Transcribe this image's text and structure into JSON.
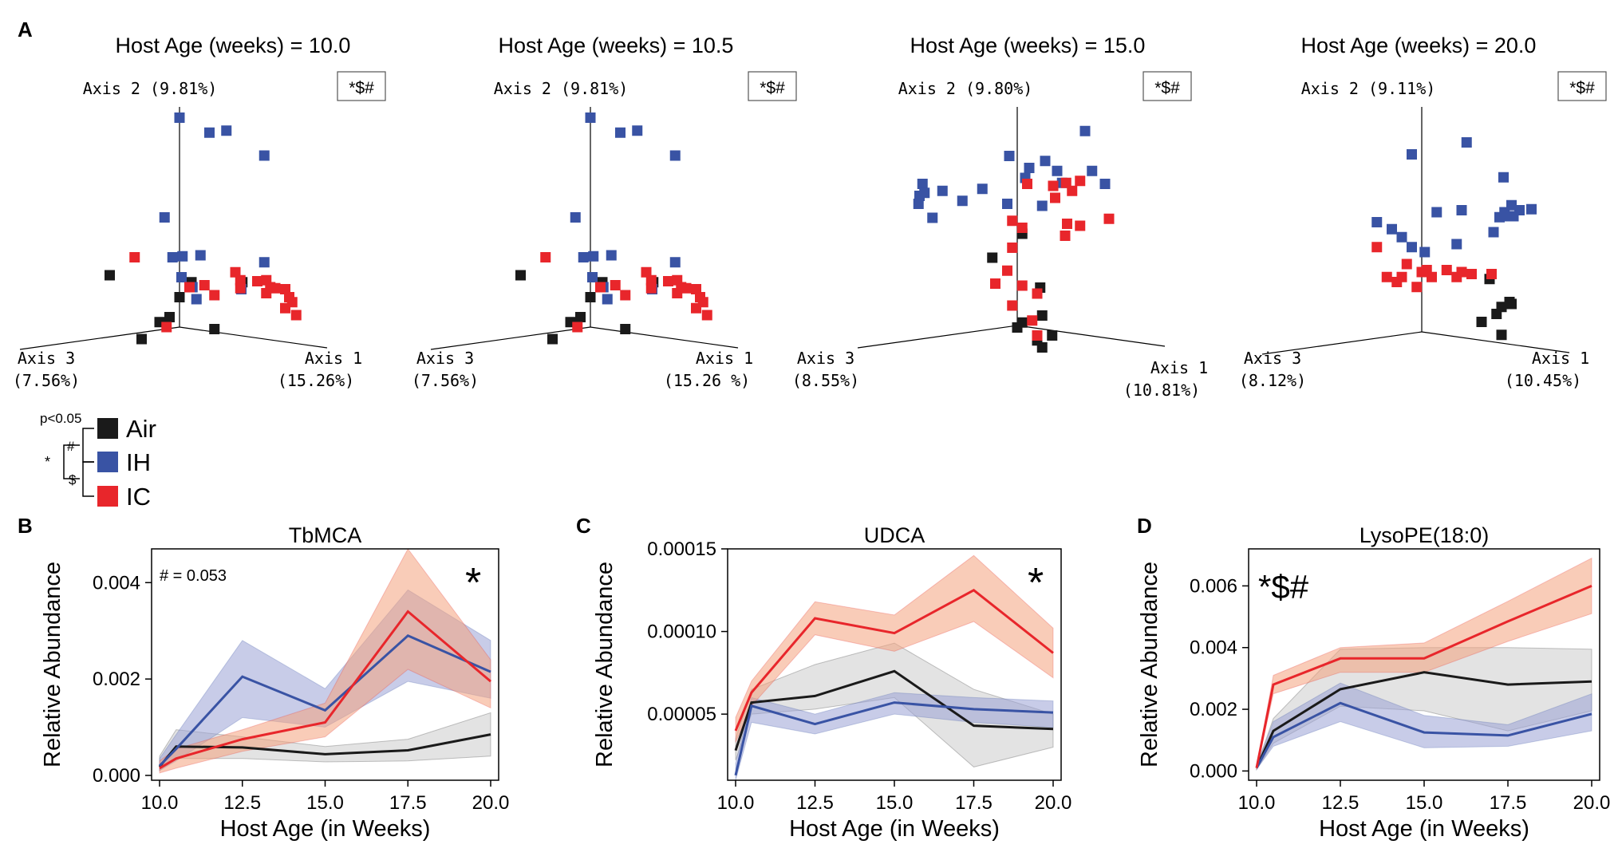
{
  "colors": {
    "air": "#1a1a1a",
    "ih": "#3953a4",
    "ic": "#e8262b",
    "air_band": "#cccccc",
    "ih_band": "#9aa3d6",
    "ic_band": "#f4a27e"
  },
  "legend": {
    "pvalue_label": "p<0.05",
    "items": [
      {
        "key": "air",
        "label": "Air"
      },
      {
        "key": "ih",
        "label": "IH"
      },
      {
        "key": "ic",
        "label": "IC"
      }
    ],
    "bracket_hash": "#",
    "bracket_dollar": "$",
    "bracket_star": "*"
  },
  "chart_data": [
    {
      "panel": "A",
      "type": "scatter",
      "title": "Host Age (weeks) = 10.0",
      "significance": "*$#",
      "axis1_label": "Axis 1",
      "axis1_pct": "(15.26%)",
      "axis2_label": "Axis 2 (9.81%)",
      "axis3_label": "Axis 3",
      "axis3_pct": "(7.56%)",
      "points": {
        "ih": [
          [
            0,
            2.1
          ],
          [
            0.3,
            1.95
          ],
          [
            0.47,
            1.97
          ],
          [
            0.85,
            1.72
          ],
          [
            -0.15,
            1.1
          ],
          [
            -0.07,
            0.7
          ],
          [
            0.03,
            0.71
          ],
          [
            0.21,
            0.72
          ],
          [
            0.02,
            0.5
          ],
          [
            0.13,
            0.4
          ],
          [
            0.85,
            0.65
          ],
          [
            0.62,
            0.38
          ],
          [
            0.17,
            0.28
          ]
        ],
        "ic": [
          [
            -0.45,
            0.7
          ],
          [
            0.56,
            0.55
          ],
          [
            0.61,
            0.47
          ],
          [
            0.78,
            0.46
          ],
          [
            0.87,
            0.47
          ],
          [
            0.91,
            0.4
          ],
          [
            0.1,
            0.4
          ],
          [
            0.25,
            0.42
          ],
          [
            0.35,
            0.32
          ],
          [
            0.61,
            0.39
          ],
          [
            0.87,
            0.34
          ],
          [
            0.96,
            0.39
          ],
          [
            1.06,
            0.38
          ],
          [
            1.1,
            0.3
          ],
          [
            1.13,
            0.25
          ],
          [
            1.06,
            0.19
          ],
          [
            1.17,
            0.12
          ],
          [
            -0.13,
            0.0
          ]
        ],
        "air": [
          [
            -0.7,
            0.52
          ],
          [
            0.12,
            0.45
          ],
          [
            0.63,
            0.45
          ],
          [
            0.0,
            0.3
          ],
          [
            -0.1,
            0.1
          ],
          [
            -0.2,
            0.05
          ],
          [
            0.35,
            -0.02
          ],
          [
            -0.38,
            -0.12
          ]
        ]
      }
    },
    {
      "panel": "A",
      "type": "scatter",
      "title": "Host Age (weeks) = 10.5",
      "significance": "*$#",
      "axis1_label": "Axis 1",
      "axis1_pct": "(15.26 %)",
      "axis2_label": "Axis 2 (9.81%)",
      "axis3_label": "Axis 3",
      "axis3_pct": "(7.56%)",
      "points": {
        "ih": [
          [
            0,
            2.1
          ],
          [
            0.3,
            1.95
          ],
          [
            0.47,
            1.97
          ],
          [
            0.85,
            1.72
          ],
          [
            -0.15,
            1.1
          ],
          [
            -0.07,
            0.7
          ],
          [
            0.03,
            0.71
          ],
          [
            0.21,
            0.72
          ],
          [
            0.02,
            0.5
          ],
          [
            0.13,
            0.4
          ],
          [
            0.85,
            0.65
          ],
          [
            0.62,
            0.38
          ],
          [
            0.17,
            0.28
          ]
        ],
        "ic": [
          [
            -0.45,
            0.7
          ],
          [
            0.56,
            0.55
          ],
          [
            0.61,
            0.47
          ],
          [
            0.78,
            0.46
          ],
          [
            0.87,
            0.47
          ],
          [
            0.91,
            0.4
          ],
          [
            0.1,
            0.4
          ],
          [
            0.25,
            0.42
          ],
          [
            0.35,
            0.32
          ],
          [
            0.61,
            0.39
          ],
          [
            0.87,
            0.34
          ],
          [
            0.96,
            0.39
          ],
          [
            1.06,
            0.38
          ],
          [
            1.1,
            0.3
          ],
          [
            1.13,
            0.25
          ],
          [
            1.06,
            0.19
          ],
          [
            1.17,
            0.12
          ],
          [
            -0.13,
            0.0
          ]
        ],
        "air": [
          [
            -0.7,
            0.52
          ],
          [
            0.12,
            0.45
          ],
          [
            0.63,
            0.45
          ],
          [
            0.0,
            0.3
          ],
          [
            -0.1,
            0.1
          ],
          [
            -0.2,
            0.05
          ],
          [
            0.35,
            -0.02
          ],
          [
            -0.38,
            -0.12
          ]
        ]
      }
    },
    {
      "panel": "A",
      "type": "scatter",
      "title": "Host Age (weeks) = 15.0",
      "significance": "*$#",
      "axis1_label": "Axis 1",
      "axis1_pct": "(10.81%)",
      "axis2_label": "Axis 2 (9.80%)",
      "axis3_label": "Axis 3",
      "axis3_pct": "(8.55%)",
      "points": {
        "ih": [
          [
            -0.95,
            1.42
          ],
          [
            -0.93,
            1.33
          ],
          [
            -0.98,
            1.3
          ],
          [
            -0.99,
            1.22
          ],
          [
            -0.75,
            1.35
          ],
          [
            -0.55,
            1.25
          ],
          [
            -0.85,
            1.08
          ],
          [
            -0.35,
            1.37
          ],
          [
            -0.1,
            1.22
          ],
          [
            -0.08,
            1.7
          ],
          [
            0.12,
            1.58
          ],
          [
            0.28,
            1.65
          ],
          [
            0.4,
            1.55
          ],
          [
            0.45,
            1.43
          ],
          [
            0.68,
            1.95
          ],
          [
            0.75,
            1.55
          ],
          [
            0.88,
            1.42
          ],
          [
            0.08,
            1.48
          ],
          [
            0.25,
            1.2
          ]
        ],
        "ic": [
          [
            0.1,
            1.42
          ],
          [
            0.36,
            1.4
          ],
          [
            0.49,
            1.43
          ],
          [
            0.55,
            1.35
          ],
          [
            0.38,
            1.28
          ],
          [
            0.63,
            1.45
          ],
          [
            0.92,
            1.07
          ],
          [
            0.5,
            1.02
          ],
          [
            0.63,
            1.0
          ],
          [
            0.48,
            0.9
          ],
          [
            -0.05,
            1.05
          ],
          [
            0.05,
            0.98
          ],
          [
            -0.05,
            0.78
          ],
          [
            -0.1,
            0.55
          ],
          [
            -0.22,
            0.42
          ],
          [
            0.05,
            0.4
          ],
          [
            0.2,
            0.32
          ],
          [
            0.15,
            0.05
          ],
          [
            0.2,
            -0.1
          ],
          [
            -0.05,
            0.2
          ]
        ],
        "air": [
          [
            0.05,
            0.92
          ],
          [
            -0.25,
            0.68
          ],
          [
            0.23,
            0.38
          ],
          [
            0.25,
            0.1
          ],
          [
            0.05,
            0.03
          ],
          [
            0.0,
            -0.02
          ],
          [
            0.2,
            -0.15
          ],
          [
            0.35,
            -0.1
          ],
          [
            0.25,
            -0.22
          ]
        ]
      }
    },
    {
      "panel": "A",
      "type": "scatter",
      "title": "Host Age (weeks) = 20.0",
      "significance": "*$#",
      "axis1_label": "Axis 1",
      "axis1_pct": "(10.45%)",
      "axis2_label": "Axis 2 (9.11%)",
      "axis3_label": "Axis 3",
      "axis3_pct": "(8.12%)",
      "points": {
        "ih": [
          [
            -0.1,
            1.78
          ],
          [
            0.45,
            1.9
          ],
          [
            0.82,
            1.55
          ],
          [
            0.78,
            1.15
          ],
          [
            0.72,
            1.0
          ],
          [
            0.98,
            1.22
          ],
          [
            0.83,
            1.2
          ],
          [
            0.88,
            1.16
          ],
          [
            0.92,
            1.16
          ],
          [
            0.9,
            1.27
          ],
          [
            1.1,
            1.23
          ],
          [
            0.15,
            1.2
          ],
          [
            0.4,
            1.22
          ],
          [
            -0.3,
            1.03
          ],
          [
            -0.45,
            1.1
          ],
          [
            -0.2,
            0.95
          ],
          [
            -0.1,
            0.85
          ],
          [
            0.03,
            0.8
          ],
          [
            0.35,
            0.88
          ]
        ],
        "ic": [
          [
            -0.45,
            0.85
          ],
          [
            -0.15,
            0.68
          ],
          [
            0.0,
            0.6
          ],
          [
            0.05,
            0.62
          ],
          [
            0.25,
            0.62
          ],
          [
            0.5,
            0.58
          ],
          [
            0.7,
            0.58
          ],
          [
            -0.35,
            0.55
          ],
          [
            -0.2,
            0.55
          ],
          [
            0.1,
            0.55
          ],
          [
            0.35,
            0.55
          ],
          [
            0.4,
            0.6
          ],
          [
            -0.25,
            0.5
          ],
          [
            -0.05,
            0.45
          ]
        ],
        "air": [
          [
            0.68,
            0.53
          ],
          [
            0.88,
            0.3
          ],
          [
            0.8,
            0.25
          ],
          [
            0.9,
            0.28
          ],
          [
            0.75,
            0.18
          ],
          [
            0.6,
            0.1
          ],
          [
            0.8,
            -0.03
          ]
        ]
      }
    },
    {
      "panel": "B",
      "type": "line",
      "title": "TbMCA",
      "annotation": "# = 0.053",
      "significance": "*",
      "xlabel": "Host Age (in Weeks)",
      "ylabel": "Relative Abundance",
      "xlim": [
        10.0,
        20.0
      ],
      "ylim": [
        -0.0001,
        0.0047
      ],
      "xticks": [
        "10.0",
        "12.5",
        "15.0",
        "17.5",
        "20.0"
      ],
      "yticks": [
        "0.000",
        "0.002",
        "0.004"
      ],
      "x": [
        10.0,
        10.5,
        12.5,
        15.0,
        17.5,
        20.0
      ],
      "series": [
        {
          "name": "Air",
          "key": "air",
          "values": [
            0.00018,
            0.0006,
            0.00058,
            0.00044,
            0.00052,
            0.00085
          ],
          "lower": [
            0.0001,
            0.00035,
            0.00035,
            0.00028,
            0.0003,
            0.0004
          ],
          "upper": [
            0.0004,
            0.00095,
            0.0008,
            0.0006,
            0.00075,
            0.0013
          ]
        },
        {
          "name": "IH",
          "key": "ih",
          "values": [
            0.0002,
            0.00055,
            0.00205,
            0.00135,
            0.0029,
            0.00215
          ],
          "lower": [
            0.0001,
            0.0003,
            0.0012,
            0.001,
            0.00195,
            0.0016
          ],
          "upper": [
            0.00035,
            0.00085,
            0.0028,
            0.0018,
            0.00385,
            0.0028
          ]
        },
        {
          "name": "IC",
          "key": "ic",
          "values": [
            0.00015,
            0.00035,
            0.00075,
            0.0011,
            0.0034,
            0.00195
          ],
          "lower": [
            5e-05,
            0.00015,
            0.0005,
            0.0008,
            0.0022,
            0.0014
          ],
          "upper": [
            0.0003,
            0.00055,
            0.00095,
            0.0015,
            0.0047,
            0.0024
          ]
        }
      ]
    },
    {
      "panel": "C",
      "type": "line",
      "title": "UDCA",
      "significance": "*",
      "xlabel": "Host Age (in Weeks)",
      "ylabel": "Relative Abundance",
      "xlim": [
        10.0,
        20.0
      ],
      "ylim": [
        1e-05,
        0.00015
      ],
      "xticks": [
        "10.0",
        "12.5",
        "15.0",
        "17.5",
        "20.0"
      ],
      "yticks": [
        "0.00005",
        "0.00010",
        "0.00015"
      ],
      "x": [
        10.0,
        10.5,
        12.5,
        15.0,
        17.5,
        20.0
      ],
      "series": [
        {
          "name": "Air",
          "key": "air",
          "values": [
            2.8e-05,
            5.7e-05,
            6.1e-05,
            7.6e-05,
            4.3e-05,
            4.1e-05
          ],
          "lower": [
            2.2e-05,
            5e-05,
            5.3e-05,
            6e-05,
            1.8e-05,
            3e-05
          ],
          "upper": [
            3.5e-05,
            6.5e-05,
            8e-05,
            9.3e-05,
            6.5e-05,
            5e-05
          ]
        },
        {
          "name": "IH",
          "key": "ih",
          "values": [
            1.3e-05,
            5.5e-05,
            4.4e-05,
            5.7e-05,
            5.3e-05,
            5.1e-05
          ],
          "lower": [
            1e-05,
            4.5e-05,
            3.8e-05,
            5e-05,
            4.5e-05,
            4.2e-05
          ],
          "upper": [
            2e-05,
            6e-05,
            5e-05,
            6.3e-05,
            6e-05,
            5.8e-05
          ]
        },
        {
          "name": "IC",
          "key": "ic",
          "values": [
            4e-05,
            6.3e-05,
            0.000108,
            9.9e-05,
            0.000125,
            8.7e-05
          ],
          "lower": [
            3.3e-05,
            5.5e-05,
            9.8e-05,
            8.8e-05,
            0.000106,
            7.2e-05
          ],
          "upper": [
            4.8e-05,
            7e-05,
            0.000118,
            0.00011,
            0.000146,
            0.000102
          ]
        }
      ]
    },
    {
      "panel": "D",
      "type": "line",
      "title": "LysoPE(18:0)",
      "significance": "*$#",
      "xlabel": "Host Age (in Weeks)",
      "ylabel": "Relative Abundance",
      "xlim": [
        10.0,
        20.0
      ],
      "ylim": [
        -0.0003,
        0.0072
      ],
      "xticks": [
        "10.0",
        "12.5",
        "15.0",
        "17.5",
        "20.0"
      ],
      "yticks": [
        "0.000",
        "0.002",
        "0.004",
        "0.006"
      ],
      "x": [
        10.0,
        10.5,
        12.5,
        15.0,
        17.5,
        20.0
      ],
      "series": [
        {
          "name": "Air",
          "key": "air",
          "values": [
            0.0001,
            0.0013,
            0.00265,
            0.0032,
            0.0028,
            0.0029
          ],
          "lower": [
            5e-05,
            0.0009,
            0.0021,
            0.00195,
            0.0013,
            0.00195
          ],
          "upper": [
            0.00015,
            0.0017,
            0.00395,
            0.004,
            0.004,
            0.00395
          ]
        },
        {
          "name": "IH",
          "key": "ih",
          "values": [
            0.0001,
            0.0011,
            0.0022,
            0.00125,
            0.00115,
            0.00185
          ],
          "lower": [
            5e-05,
            0.0008,
            0.0016,
            0.00075,
            0.0008,
            0.0013
          ],
          "upper": [
            0.00015,
            0.0016,
            0.00285,
            0.0018,
            0.0015,
            0.0025
          ]
        },
        {
          "name": "IC",
          "key": "ic",
          "values": [
            0.0001,
            0.0028,
            0.00365,
            0.00365,
            0.00485,
            0.006
          ],
          "lower": [
            5e-05,
            0.0025,
            0.0032,
            0.0032,
            0.0042,
            0.0051
          ],
          "upper": [
            0.00015,
            0.0031,
            0.004,
            0.00415,
            0.0055,
            0.0069
          ]
        }
      ]
    }
  ],
  "panel_letters": {
    "a": "A",
    "b": "B",
    "c": "C",
    "d": "D"
  }
}
